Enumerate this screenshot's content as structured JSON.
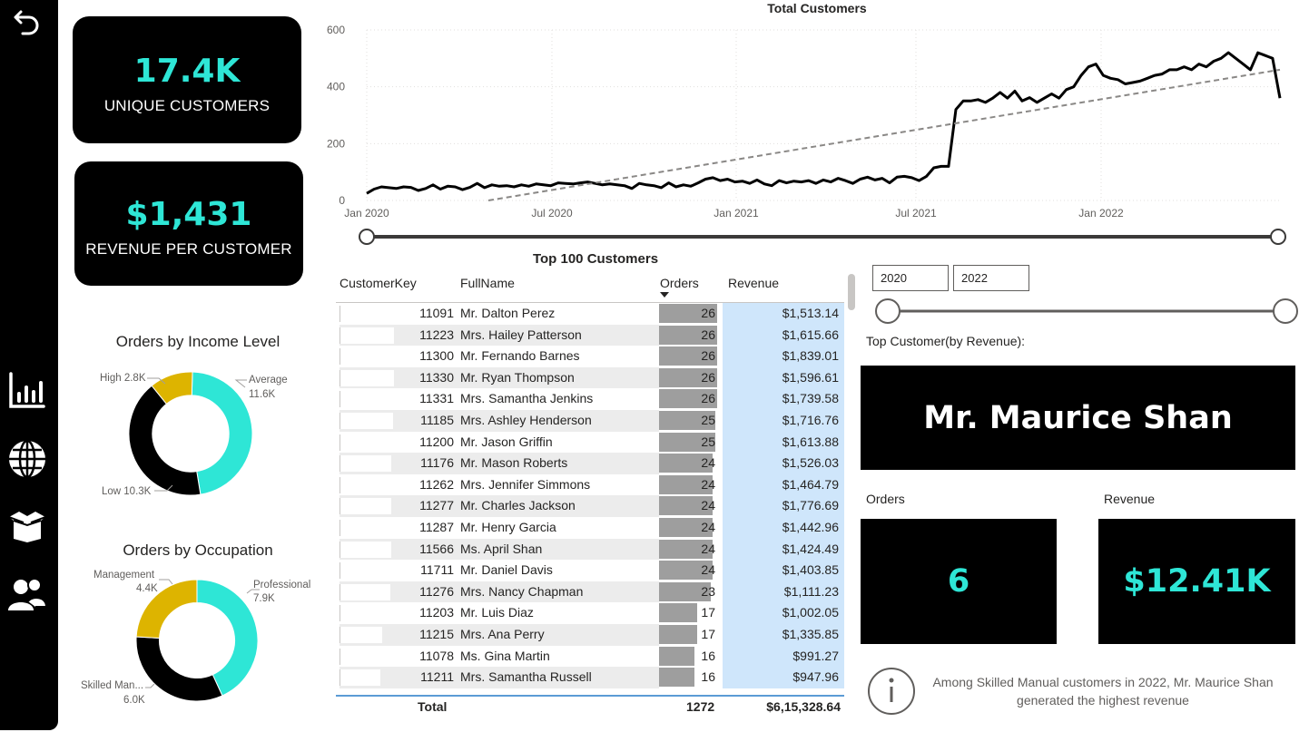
{
  "nav": {
    "items": [
      {
        "icon": "back-arrow-icon"
      },
      {
        "icon": "bar-chart-icon"
      },
      {
        "icon": "globe-icon"
      },
      {
        "icon": "box-icon"
      },
      {
        "icon": "users-icon"
      }
    ]
  },
  "kpis": {
    "unique_customers": {
      "value": "17.4K",
      "label": "UNIQUE CUSTOMERS"
    },
    "revenue_per_customer": {
      "value": "$1,431",
      "label": "REVENUE PER CUSTOMER"
    }
  },
  "income_donut": {
    "title": "Orders by Income Level",
    "labels": {
      "high": "High 2.8K",
      "average_name": "Average",
      "average_value": "11.6K",
      "low": "Low 10.3K"
    }
  },
  "occupation_donut": {
    "title": "Orders by Occupation",
    "labels": {
      "management_name": "Management",
      "management_value": "4.4K",
      "professional_name": "Professional",
      "professional_value": "7.9K",
      "skilled_name": "Skilled Man...",
      "skilled_value": "6.0K"
    }
  },
  "line_chart": {
    "title": "Total Customers"
  },
  "table": {
    "title": "Top 100 Customers",
    "headers": {
      "key": "CustomerKey",
      "name": "FullName",
      "orders": "Orders",
      "revenue": "Revenue"
    },
    "rows": [
      {
        "key": "11091",
        "name": "Mr. Dalton Perez",
        "orders": "26",
        "revenue": "$1,513.14"
      },
      {
        "key": "11223",
        "name": "Mrs. Hailey Patterson",
        "orders": "26",
        "revenue": "$1,615.66"
      },
      {
        "key": "11300",
        "name": "Mr. Fernando Barnes",
        "orders": "26",
        "revenue": "$1,839.01"
      },
      {
        "key": "11330",
        "name": "Mr. Ryan Thompson",
        "orders": "26",
        "revenue": "$1,596.61"
      },
      {
        "key": "11331",
        "name": "Mrs. Samantha Jenkins",
        "orders": "26",
        "revenue": "$1,739.58"
      },
      {
        "key": "11185",
        "name": "Mrs. Ashley Henderson",
        "orders": "25",
        "revenue": "$1,716.76"
      },
      {
        "key": "11200",
        "name": "Mr. Jason Griffin",
        "orders": "25",
        "revenue": "$1,613.88"
      },
      {
        "key": "11176",
        "name": "Mr. Mason Roberts",
        "orders": "24",
        "revenue": "$1,526.03"
      },
      {
        "key": "11262",
        "name": "Mrs. Jennifer Simmons",
        "orders": "24",
        "revenue": "$1,464.79"
      },
      {
        "key": "11277",
        "name": "Mr. Charles Jackson",
        "orders": "24",
        "revenue": "$1,776.69"
      },
      {
        "key": "11287",
        "name": "Mr. Henry Garcia",
        "orders": "24",
        "revenue": "$1,442.96"
      },
      {
        "key": "11566",
        "name": "Ms. April Shan",
        "orders": "24",
        "revenue": "$1,424.49"
      },
      {
        "key": "11711",
        "name": "Mr. Daniel Davis",
        "orders": "24",
        "revenue": "$1,403.85"
      },
      {
        "key": "11276",
        "name": "Mrs. Nancy Chapman",
        "orders": "23",
        "revenue": "$1,111.23"
      },
      {
        "key": "11203",
        "name": "Mr. Luis Diaz",
        "orders": "17",
        "revenue": "$1,002.05"
      },
      {
        "key": "11215",
        "name": "Mrs. Ana Perry",
        "orders": "17",
        "revenue": "$1,335.85"
      },
      {
        "key": "11078",
        "name": "Ms. Gina Martin",
        "orders": "16",
        "revenue": "$991.27"
      },
      {
        "key": "11211",
        "name": "Mrs. Samantha Russell",
        "orders": "16",
        "revenue": "$947.96"
      }
    ],
    "total": {
      "label": "Total",
      "orders": "1272",
      "revenue": "$6,15,328.64"
    }
  },
  "filters": {
    "year_start": "2020",
    "year_end": "2022"
  },
  "top_customer": {
    "label": "Top Customer(by Revenue):",
    "name": "Mr. Maurice Shan",
    "orders_label": "Orders",
    "orders_value": "6",
    "revenue_label": "Revenue",
    "revenue_value": "$12.41K"
  },
  "insight": {
    "icon": "info-icon",
    "text": "Among Skilled Manual customers in 2022, Mr. Maurice Shan generated the highest revenue"
  },
  "colors": {
    "accent": "#2ee6d6",
    "gold": "#ddb400",
    "card": "#000000",
    "revenue_cell": "#cfe6fb",
    "orders_bar": "#9e9e9e"
  },
  "chart_data": [
    {
      "type": "line",
      "title": "Total Customers",
      "x_ticks": [
        "Jan 2020",
        "Jul 2020",
        "Jan 2021",
        "Jul 2021",
        "Jan 2022"
      ],
      "y_ticks": [
        "0",
        "200",
        "400",
        "600"
      ],
      "ylim": [
        0,
        600
      ],
      "grid": true,
      "series": [
        {
          "values": [
            25,
            40,
            48,
            45,
            42,
            48,
            46,
            35,
            42,
            55,
            40,
            50,
            48,
            38,
            46,
            60,
            45,
            55,
            50,
            52,
            48,
            55,
            50,
            58,
            55,
            52,
            62,
            60,
            58,
            62,
            65,
            60,
            55,
            58,
            55,
            52,
            42,
            60,
            55,
            52,
            45,
            62,
            48,
            55,
            50,
            62,
            75,
            80,
            70,
            75,
            65,
            68,
            60,
            72,
            58,
            52,
            70,
            62,
            68,
            65,
            70,
            60,
            72,
            65,
            78,
            70,
            60,
            75,
            82,
            72,
            78,
            62,
            82,
            85,
            80,
            70,
            85,
            115,
            120,
            120,
            320,
            350,
            350,
            355,
            345,
            360,
            380,
            360,
            385,
            350,
            362,
            345,
            360,
            375,
            360,
            390,
            400,
            440,
            470,
            480,
            440,
            430,
            425,
            410,
            415,
            420,
            430,
            440,
            445,
            460,
            460,
            470,
            460,
            480,
            470,
            490,
            500,
            520,
            500,
            480,
            460,
            520,
            510,
            500,
            360
          ]
        },
        {
          "type": "trend",
          "values": [
            -10,
            460
          ]
        }
      ]
    },
    {
      "type": "pie",
      "title": "Orders by Income Level",
      "categories": [
        "Average",
        "Low",
        "High"
      ],
      "values": [
        11.6,
        10.3,
        2.8
      ]
    },
    {
      "type": "pie",
      "title": "Orders by Occupation",
      "categories": [
        "Professional",
        "Skilled Man...",
        "Management"
      ],
      "values": [
        7.9,
        6.0,
        4.4
      ]
    }
  ]
}
